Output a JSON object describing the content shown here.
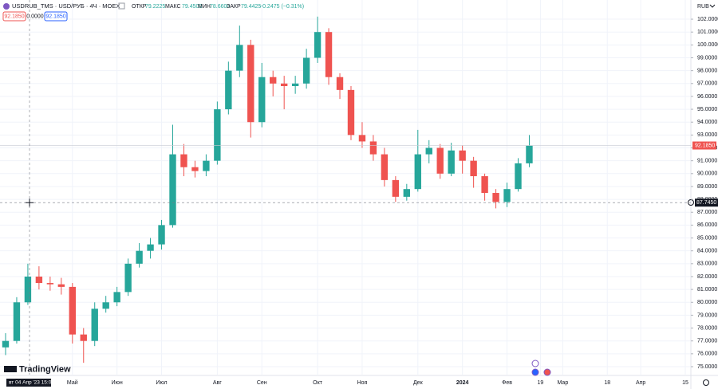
{
  "chart_data": {
    "type": "candlestick",
    "title": "USDRUB_TMS · USD/РУБ · 4Ч · MOEX",
    "ohlc_legend": {
      "open_label": "ОТКР",
      "open": "79.2225",
      "high_label": "МАКС",
      "high": "79.4500",
      "low_label": "МИН",
      "low": "78.6600",
      "close_label": "ЗАКР",
      "close": "79.4425",
      "change": "−0.2475 (−0.31%)"
    },
    "trade_boxes": {
      "sell": "92.1850",
      "spread": "0.0000",
      "buy": "92.1850"
    },
    "currency": "RUB",
    "logo": "TradingView",
    "crosshair_time": "вт 04 Апр '23 15:00",
    "up_color": "#26a69a",
    "down_color": "#ef5350",
    "categories": [
      null,
      null,
      null,
      null,
      null,
      null,
      "Май",
      null,
      null,
      null,
      "Июн",
      null,
      null,
      null,
      "Июл",
      null,
      null,
      null,
      null,
      "Авг",
      null,
      null,
      null,
      "Сен",
      null,
      null,
      null,
      null,
      "Окт",
      null,
      null,
      null,
      "Ноя",
      null,
      null,
      null,
      null,
      "Дек",
      null,
      null,
      null,
      "2024",
      null,
      null,
      null,
      "Фев",
      null,
      null,
      "19",
      null,
      "Мар",
      null,
      null,
      null,
      "18",
      null,
      null,
      "Апр",
      null,
      null,
      null,
      "15"
    ],
    "open": [
      76.5,
      77,
      80,
      82,
      81.5,
      81.4,
      81.2,
      77.5,
      77,
      79.5,
      80,
      80.8,
      83,
      84,
      84.5,
      86,
      91.5,
      90.5,
      90.2,
      91,
      95,
      98,
      100,
      94,
      97.5,
      97,
      96.8,
      97,
      99,
      101,
      97.5,
      96.5,
      93,
      92.5,
      91.5,
      89.5,
      88.2,
      88.8,
      91.5,
      92,
      90,
      91.8,
      91,
      89.8,
      88.5,
      87.8,
      88.8,
      90.8,
      null,
      null,
      null,
      null,
      null,
      null,
      null,
      null,
      null,
      null,
      null,
      null,
      null,
      null
    ],
    "high": [
      77.6,
      80.4,
      83,
      82.8,
      82,
      81.9,
      81.5,
      78,
      80,
      80.5,
      81.2,
      83.4,
      84.6,
      85,
      86.4,
      93.8,
      92.3,
      91,
      91.5,
      95.6,
      98.7,
      101.5,
      100.4,
      98.6,
      98,
      97.6,
      97.6,
      99.7,
      102.2,
      101.3,
      97.8,
      96.8,
      94,
      93,
      92,
      89.8,
      89.2,
      93.4,
      92.6,
      92.3,
      92.4,
      92.2,
      91.3,
      90,
      88.8,
      89.3,
      91.2,
      93,
      null,
      null,
      null,
      null,
      null,
      null,
      null,
      null,
      null,
      null,
      null,
      null,
      null,
      null
    ],
    "low": [
      75.9,
      76.8,
      79.8,
      81,
      80.9,
      80.6,
      76.8,
      75.3,
      76.6,
      79.2,
      79.7,
      80.5,
      82.7,
      83.4,
      84.1,
      85.8,
      89.8,
      89.7,
      89.8,
      90.7,
      94.6,
      97.5,
      92.8,
      93.6,
      96,
      95,
      96.2,
      96.6,
      98.6,
      96.9,
      95.8,
      92.6,
      92,
      91,
      89,
      87.8,
      87.9,
      88.6,
      90.8,
      89.6,
      89.8,
      90,
      88.9,
      87.9,
      87.3,
      87.4,
      88.6,
      90.5,
      null,
      null,
      null,
      null,
      null,
      null,
      null,
      null,
      null,
      null,
      null,
      null,
      null,
      null
    ],
    "close": [
      77,
      80,
      82,
      81.5,
      81.4,
      81.2,
      77.5,
      77,
      79.5,
      80,
      80.8,
      83,
      84,
      84.5,
      86,
      91.5,
      90.5,
      90.2,
      91,
      95,
      98,
      100,
      94,
      97.5,
      97,
      96.8,
      97,
      99,
      101,
      97.5,
      96.5,
      93,
      92.5,
      91.5,
      89.5,
      88.2,
      88.8,
      91.5,
      92,
      90,
      91.8,
      91,
      89.8,
      88.5,
      87.8,
      88.8,
      90.8,
      92.185,
      null,
      null,
      null,
      null,
      null,
      null,
      null,
      null,
      null,
      null,
      null,
      null,
      null,
      null
    ],
    "last_price": {
      "value": 92.185,
      "label": "92.1850"
    },
    "crosshair_price": {
      "value": 87.745,
      "label": "87.7450"
    },
    "ylim": [
      74.38,
      103.49
    ],
    "yticks": [
      {
        "value": 75,
        "label": "75.0000"
      },
      {
        "value": 76,
        "label": "76.0000"
      },
      {
        "value": 77,
        "label": "77.0000"
      },
      {
        "value": 78,
        "label": "78.0000"
      },
      {
        "value": 79,
        "label": "79.0000"
      },
      {
        "value": 80,
        "label": "80.0000"
      },
      {
        "value": 81,
        "label": "81.0000"
      },
      {
        "value": 82,
        "label": "82.0000"
      },
      {
        "value": 83,
        "label": "83.0000"
      },
      {
        "value": 84,
        "label": "84.0000"
      },
      {
        "value": 85,
        "label": "85.0000"
      },
      {
        "value": 86,
        "label": "86.0000"
      },
      {
        "value": 87,
        "label": "87.0000"
      },
      {
        "value": 88,
        "label": "88.0000"
      },
      {
        "value": 89,
        "label": "89.0000"
      },
      {
        "value": 90,
        "label": "90.0000"
      },
      {
        "value": 91,
        "label": "91.0000"
      },
      {
        "value": 92,
        "label": "92.0000"
      },
      {
        "value": 93,
        "label": "93.0000"
      },
      {
        "value": 94,
        "label": "94.0000"
      },
      {
        "value": 95,
        "label": "95.0000"
      },
      {
        "value": 96,
        "label": "96.0000"
      },
      {
        "value": 97,
        "label": "97.0000"
      },
      {
        "value": 98,
        "label": "98.0000"
      },
      {
        "value": 99,
        "label": "99.0000"
      },
      {
        "value": 100,
        "label": "100.0000"
      },
      {
        "value": 101,
        "label": "101.0000"
      },
      {
        "value": 102,
        "label": "102.0000"
      }
    ],
    "grid": true
  }
}
